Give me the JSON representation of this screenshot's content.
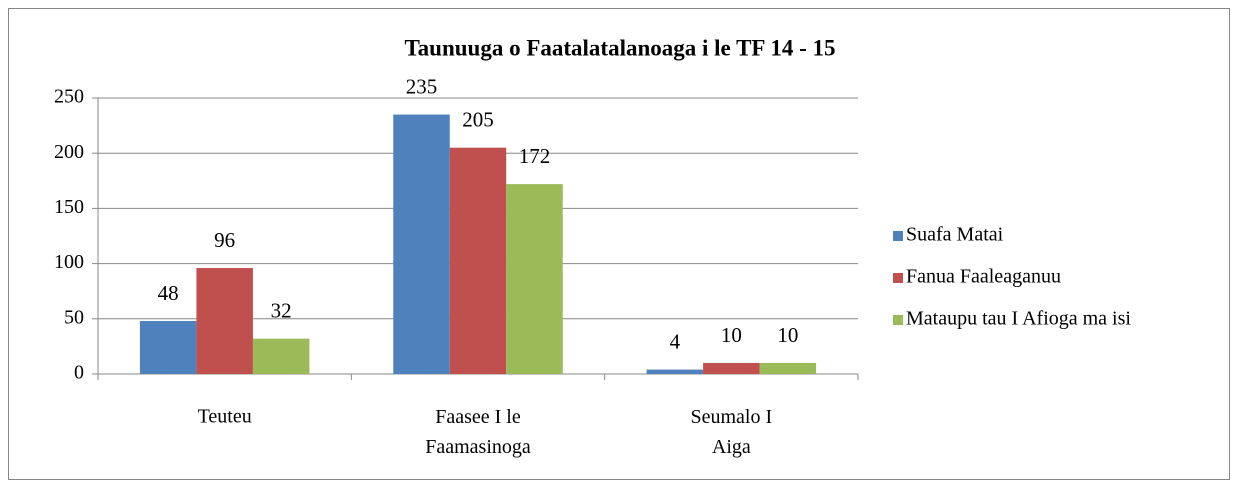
{
  "chart_data": {
    "type": "bar",
    "title": "Taunuuga o Faatalatalanoaga i le TF 14 - 15",
    "categories": [
      "Teuteu",
      "Faasee I le Faamasinoga",
      "Seumalo I Aiga"
    ],
    "series": [
      {
        "name": "Suafa Matai",
        "color": "#4f81bd",
        "values": [
          48,
          235,
          4
        ]
      },
      {
        "name": "Fanua Faaleaganuu",
        "color": "#c0504d",
        "values": [
          96,
          205,
          10
        ]
      },
      {
        "name": "Mataupu tau I Afioga ma isi",
        "color": "#9bbb59",
        "values": [
          32,
          172,
          10
        ]
      }
    ],
    "ylim": [
      0,
      250
    ],
    "yticks": [
      0,
      50,
      100,
      150,
      200,
      250
    ],
    "grid": true,
    "legend": "right"
  }
}
